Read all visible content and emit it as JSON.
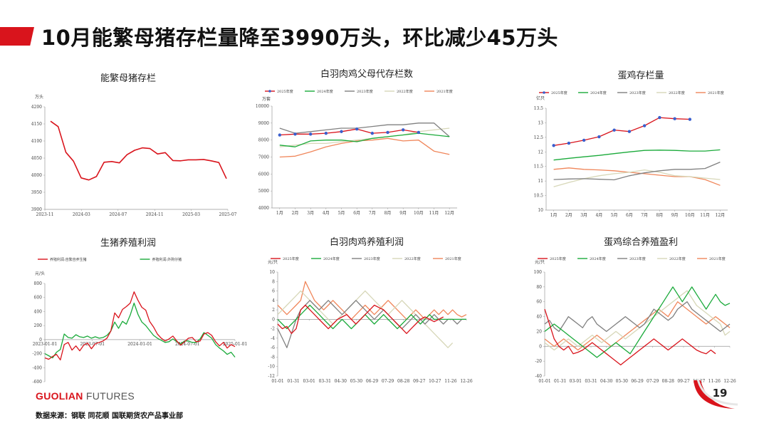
{
  "page": {
    "title": "10月能繁母猪存栏量降至3990万头，环比减少45万头",
    "logo_brand": "GUOLIAN",
    "logo_suffix": "FUTURES",
    "source": "数据来源：钢联  同花顺  国联期货农产品事业部",
    "page_number": "19"
  },
  "colors": {
    "accent": "#d9141c",
    "c2025": "#d9141c",
    "c2024": "#1aaa3a",
    "c2023": "#808080",
    "c2022": "#d7d7b8",
    "c2021": "#f0865a"
  },
  "chart_data": [
    {
      "id": "sow",
      "type": "line",
      "title": "能繁母猪存栏",
      "ylabel": "万头",
      "ylim": [
        3900,
        4200
      ],
      "yticks": [
        "3900",
        "3950",
        "4000",
        "4050",
        "4100",
        "4150",
        "4200"
      ],
      "xticks": [
        "2023-11",
        "2024-03",
        "2024-07",
        "2024-11",
        "2025-03",
        "2025-07"
      ],
      "series": [
        {
          "color": "#d9141c",
          "markers": false,
          "values": [
            4158,
            4142,
            4067,
            4041,
            3992,
            3986,
            3996,
            4038,
            4040,
            4036,
            4060,
            4073,
            4080,
            4078,
            4062,
            4066,
            4043,
            4042,
            4045,
            4045,
            4046,
            4042,
            4037,
            3990
          ]
        }
      ]
    },
    {
      "id": "broiler",
      "type": "line",
      "title": "白羽肉鸡父母代存栏数",
      "ylabel": "万套",
      "ylim": [
        4000,
        10000
      ],
      "yticks": [
        "4000",
        "5000",
        "6000",
        "7000",
        "8000",
        "9000",
        "10000"
      ],
      "xticks": [
        "1月",
        "2月",
        "3月",
        "4月",
        "5月",
        "6月",
        "7月",
        "8月",
        "9月",
        "10月",
        "11月",
        "12月"
      ],
      "legend": [
        "2025年度",
        "2024年度",
        "2023年度",
        "2022年度",
        "2021年度"
      ],
      "series": [
        {
          "name": "2025年度",
          "color": "#d9141c",
          "markers": true,
          "values": [
            8300,
            8350,
            8350,
            8400,
            8500,
            8650,
            8400,
            8450,
            8600,
            8450
          ]
        },
        {
          "name": "2024年度",
          "color": "#1aaa3a",
          "values": [
            7700,
            7600,
            7950,
            8000,
            8000,
            7900,
            8100,
            8200,
            8300,
            8400,
            8300,
            8200
          ]
        },
        {
          "name": "2023年度",
          "color": "#808080",
          "values": [
            8700,
            8400,
            8500,
            8600,
            8700,
            8700,
            8800,
            8900,
            8900,
            9000,
            9000,
            8200
          ]
        },
        {
          "name": "2022年度",
          "color": "#d7d7b8",
          "values": [
            7600,
            7700,
            7800,
            7800,
            7900,
            8000,
            8100,
            8200,
            8300,
            8500,
            8600,
            8700
          ]
        },
        {
          "name": "2021年度",
          "color": "#f0865a",
          "values": [
            7000,
            7050,
            7300,
            7600,
            7800,
            7950,
            8000,
            8100,
            7950,
            8000,
            7350,
            7150
          ]
        }
      ]
    },
    {
      "id": "layer",
      "type": "line",
      "title": "蛋鸡存栏量",
      "ylabel": "亿只",
      "ylim": [
        10,
        13.5
      ],
      "yticks": [
        "10",
        "10.5",
        "11",
        "11.5",
        "12",
        "12.5",
        "13",
        "13.5"
      ],
      "xticks": [
        "1月",
        "2月",
        "3月",
        "4月",
        "5月",
        "6月",
        "7月",
        "8月",
        "9月",
        "10月",
        "11月",
        "12月"
      ],
      "legend": [
        "2025年度",
        "2024年度",
        "2023年度",
        "2022年度",
        "2021年度"
      ],
      "series": [
        {
          "name": "2025年度",
          "color": "#d9141c",
          "markers": true,
          "values": [
            12.22,
            12.3,
            12.4,
            12.52,
            12.75,
            12.7,
            12.9,
            13.18,
            13.14,
            13.12
          ]
        },
        {
          "name": "2024年度",
          "color": "#1aaa3a",
          "values": [
            11.72,
            11.78,
            11.83,
            11.88,
            11.94,
            12.0,
            12.05,
            12.06,
            12.05,
            12.03,
            12.03,
            12.07
          ]
        },
        {
          "name": "2023年度",
          "color": "#808080",
          "values": [
            11.05,
            11.07,
            11.08,
            11.06,
            11.04,
            11.18,
            11.28,
            11.35,
            11.4,
            11.4,
            11.43,
            11.65
          ]
        },
        {
          "name": "2022年度",
          "color": "#d7d7b8",
          "values": [
            10.8,
            10.95,
            11.08,
            11.18,
            11.25,
            11.3,
            11.38,
            11.3,
            11.18,
            11.15,
            11.1,
            11.05
          ]
        },
        {
          "name": "2021年度",
          "color": "#f0865a",
          "values": [
            11.4,
            11.45,
            11.4,
            11.38,
            11.35,
            11.3,
            11.25,
            11.2,
            11.15,
            11.15,
            11.05,
            10.85
          ]
        }
      ]
    },
    {
      "id": "hog",
      "type": "line",
      "title": "生猪养殖利润",
      "ylabel": "元/头",
      "ylim": [
        -600,
        800
      ],
      "yticks": [
        "-600",
        "-400",
        "-200",
        "0",
        "200",
        "400",
        "600",
        "800"
      ],
      "xticks": [
        "2023-01-01",
        "2023-07-01",
        "2024-01-01",
        "2024-07-01",
        "2025-01-01"
      ],
      "legend": [
        "养殖利润:自繁自养生猪",
        "养殖利润:外购仔猪"
      ],
      "series": [
        {
          "name": "养殖利润:自繁自养生猪",
          "color": "#d9141c",
          "values": [
            -260,
            -280,
            -240,
            -210,
            -290,
            -70,
            -40,
            -150,
            -90,
            -160,
            -80,
            -50,
            -130,
            -60,
            -40,
            -20,
            20,
            120,
            380,
            310,
            430,
            470,
            520,
            680,
            560,
            460,
            420,
            260,
            180,
            80,
            20,
            -20,
            10,
            50,
            -20,
            -80,
            -30,
            20,
            30,
            -30,
            -20,
            80,
            100,
            60,
            -30,
            -90,
            -40,
            -120,
            -70,
            -100
          ]
        },
        {
          "name": "养殖利润:外购仔猪",
          "color": "#1aaa3a",
          "values": [
            -200,
            -230,
            -260,
            -180,
            -140,
            80,
            30,
            20,
            70,
            40,
            30,
            50,
            20,
            40,
            20,
            30,
            60,
            120,
            250,
            160,
            260,
            220,
            350,
            520,
            360,
            250,
            200,
            130,
            60,
            20,
            -10,
            -40,
            -30,
            10,
            -30,
            -60,
            -20,
            -20,
            -40,
            -40,
            10,
            100,
            60,
            20,
            -70,
            -120,
            -160,
            -210,
            -180,
            -250
          ]
        }
      ]
    },
    {
      "id": "broiler_profit",
      "type": "line",
      "title": "白羽肉鸡养殖利润",
      "ylabel": "元/只",
      "ylim": [
        -12,
        10
      ],
      "yticks": [
        "-12",
        "-10",
        "-8",
        "-6",
        "-4",
        "-2",
        "0",
        "2",
        "4",
        "6",
        "8",
        "10"
      ],
      "xticks": [
        "01-01",
        "01-31",
        "03-01",
        "03-31",
        "04-30",
        "05-30",
        "06-29",
        "07-29",
        "08-28",
        "09-27",
        "10-27",
        "11-26",
        "12-26"
      ],
      "legend": [
        "2025年度",
        "2024年度",
        "2023年度",
        "2022年度",
        "2021年度"
      ],
      "series": [
        {
          "name": "2025年度",
          "color": "#d9141c",
          "values": [
            -1,
            -2,
            -1.5,
            -3,
            -2,
            2,
            3,
            2,
            1,
            0,
            -1,
            -2,
            -1,
            0,
            0.5,
            1,
            0,
            -1,
            0,
            1,
            2,
            3,
            2.5,
            2,
            1,
            0,
            -1,
            -2,
            -3,
            -2,
            -1,
            0,
            0.5,
            0,
            -0.5,
            0,
            0.5
          ]
        },
        {
          "name": "2024年度",
          "color": "#1aaa3a",
          "values": [
            0,
            -1,
            -2,
            -1,
            0,
            1,
            2,
            3,
            2,
            1,
            0,
            -1,
            -2,
            -1,
            0,
            -1,
            -2,
            -1,
            0,
            1,
            0,
            -1,
            0,
            1,
            0,
            -1,
            -2,
            -1,
            0,
            1,
            0,
            -1,
            0,
            1,
            0,
            0,
            0,
            0,
            0,
            0,
            0,
            0
          ]
        },
        {
          "name": "2023年度",
          "color": "#808080",
          "values": [
            -2,
            -4,
            -6,
            -3,
            0,
            2,
            3,
            4,
            3,
            2,
            3,
            4,
            3,
            2,
            1,
            2,
            3,
            4,
            3,
            2,
            1,
            0,
            1,
            2,
            1,
            0,
            -1,
            -2,
            -1,
            0,
            1,
            0,
            -1,
            0,
            1,
            0,
            -1,
            0,
            0,
            -1,
            0,
            0
          ]
        },
        {
          "name": "2022年度",
          "color": "#d7d7b8",
          "values": [
            1,
            2,
            3,
            4,
            5,
            6,
            5,
            4,
            3,
            2,
            1,
            0,
            -1,
            0,
            1,
            2,
            3,
            4,
            5,
            6,
            5,
            4,
            3,
            2,
            1,
            2,
            3,
            4,
            3,
            2,
            1,
            0,
            -1,
            -2,
            -3,
            -4,
            -5,
            -6,
            -5
          ]
        },
        {
          "name": "2021年度",
          "color": "#f0865a",
          "values": [
            3,
            2,
            1,
            2,
            3,
            4,
            8,
            6,
            4,
            3,
            2,
            3,
            4,
            3,
            2,
            1,
            0,
            1,
            2,
            3,
            2,
            1,
            2,
            3,
            4,
            3,
            2,
            1,
            0,
            1,
            2,
            1,
            0,
            1,
            2,
            1,
            2,
            1,
            2,
            1,
            0.5,
            1
          ]
        }
      ]
    },
    {
      "id": "layer_profit",
      "type": "line",
      "title": "蛋鸡综合养殖盈利",
      "ylabel": "元/只",
      "ylim": [
        -40,
        100
      ],
      "yticks": [
        "-40",
        "-20",
        "0",
        "20",
        "40",
        "60",
        "80",
        "100"
      ],
      "xticks": [
        "01-01",
        "01-31",
        "03-01",
        "03-31",
        "04-30",
        "05-30",
        "06-29",
        "07-29",
        "08-28",
        "09-27",
        "10-27",
        "11-26",
        "12-26"
      ],
      "legend": [
        "2025年度",
        "2024年度",
        "2023年度",
        "2022年度",
        "2021年度"
      ],
      "series": [
        {
          "name": "2025年度",
          "color": "#d9141c",
          "values": [
            50,
            30,
            10,
            0,
            -5,
            0,
            -10,
            -8,
            -5,
            0,
            5,
            0,
            -5,
            -10,
            -15,
            -20,
            -25,
            -20,
            -15,
            -10,
            -5,
            0,
            5,
            10,
            5,
            0,
            -5,
            0,
            5,
            10,
            5,
            0,
            -5,
            -8,
            -10,
            -5,
            -10
          ]
        },
        {
          "name": "2024年度",
          "color": "#1aaa3a",
          "values": [
            20,
            25,
            30,
            25,
            20,
            15,
            10,
            5,
            0,
            -5,
            -10,
            -15,
            -10,
            -5,
            0,
            5,
            0,
            -5,
            -10,
            0,
            10,
            20,
            30,
            40,
            50,
            60,
            70,
            80,
            70,
            60,
            70,
            80,
            70,
            60,
            50,
            60,
            70,
            60,
            55,
            58
          ]
        },
        {
          "name": "2023年度",
          "color": "#808080",
          "values": [
            30,
            35,
            25,
            20,
            30,
            40,
            35,
            30,
            25,
            35,
            40,
            30,
            25,
            20,
            25,
            30,
            35,
            40,
            35,
            30,
            25,
            30,
            40,
            50,
            45,
            40,
            35,
            40,
            50,
            55,
            60,
            50,
            45,
            40,
            35,
            30,
            25,
            20,
            25,
            30
          ]
        },
        {
          "name": "2022年度",
          "color": "#d7d7b8",
          "values": [
            5,
            0,
            -5,
            0,
            5,
            10,
            5,
            0,
            5,
            10,
            15,
            10,
            5,
            10,
            15,
            20,
            15,
            10,
            15,
            20,
            25,
            30,
            35,
            40,
            45,
            50,
            55,
            60,
            65,
            70,
            75,
            65,
            55,
            50,
            45,
            40,
            35,
            30,
            15,
            20
          ]
        },
        {
          "name": "2021年度",
          "color": "#f0865a",
          "values": [
            10,
            5,
            0,
            5,
            10,
            5,
            0,
            -5,
            0,
            5,
            10,
            15,
            10,
            5,
            0,
            5,
            10,
            15,
            20,
            25,
            30,
            35,
            40,
            45,
            50,
            45,
            40,
            50,
            60,
            55,
            50,
            45,
            40,
            35,
            30,
            35,
            40,
            35,
            30,
            25
          ]
        }
      ]
    }
  ]
}
